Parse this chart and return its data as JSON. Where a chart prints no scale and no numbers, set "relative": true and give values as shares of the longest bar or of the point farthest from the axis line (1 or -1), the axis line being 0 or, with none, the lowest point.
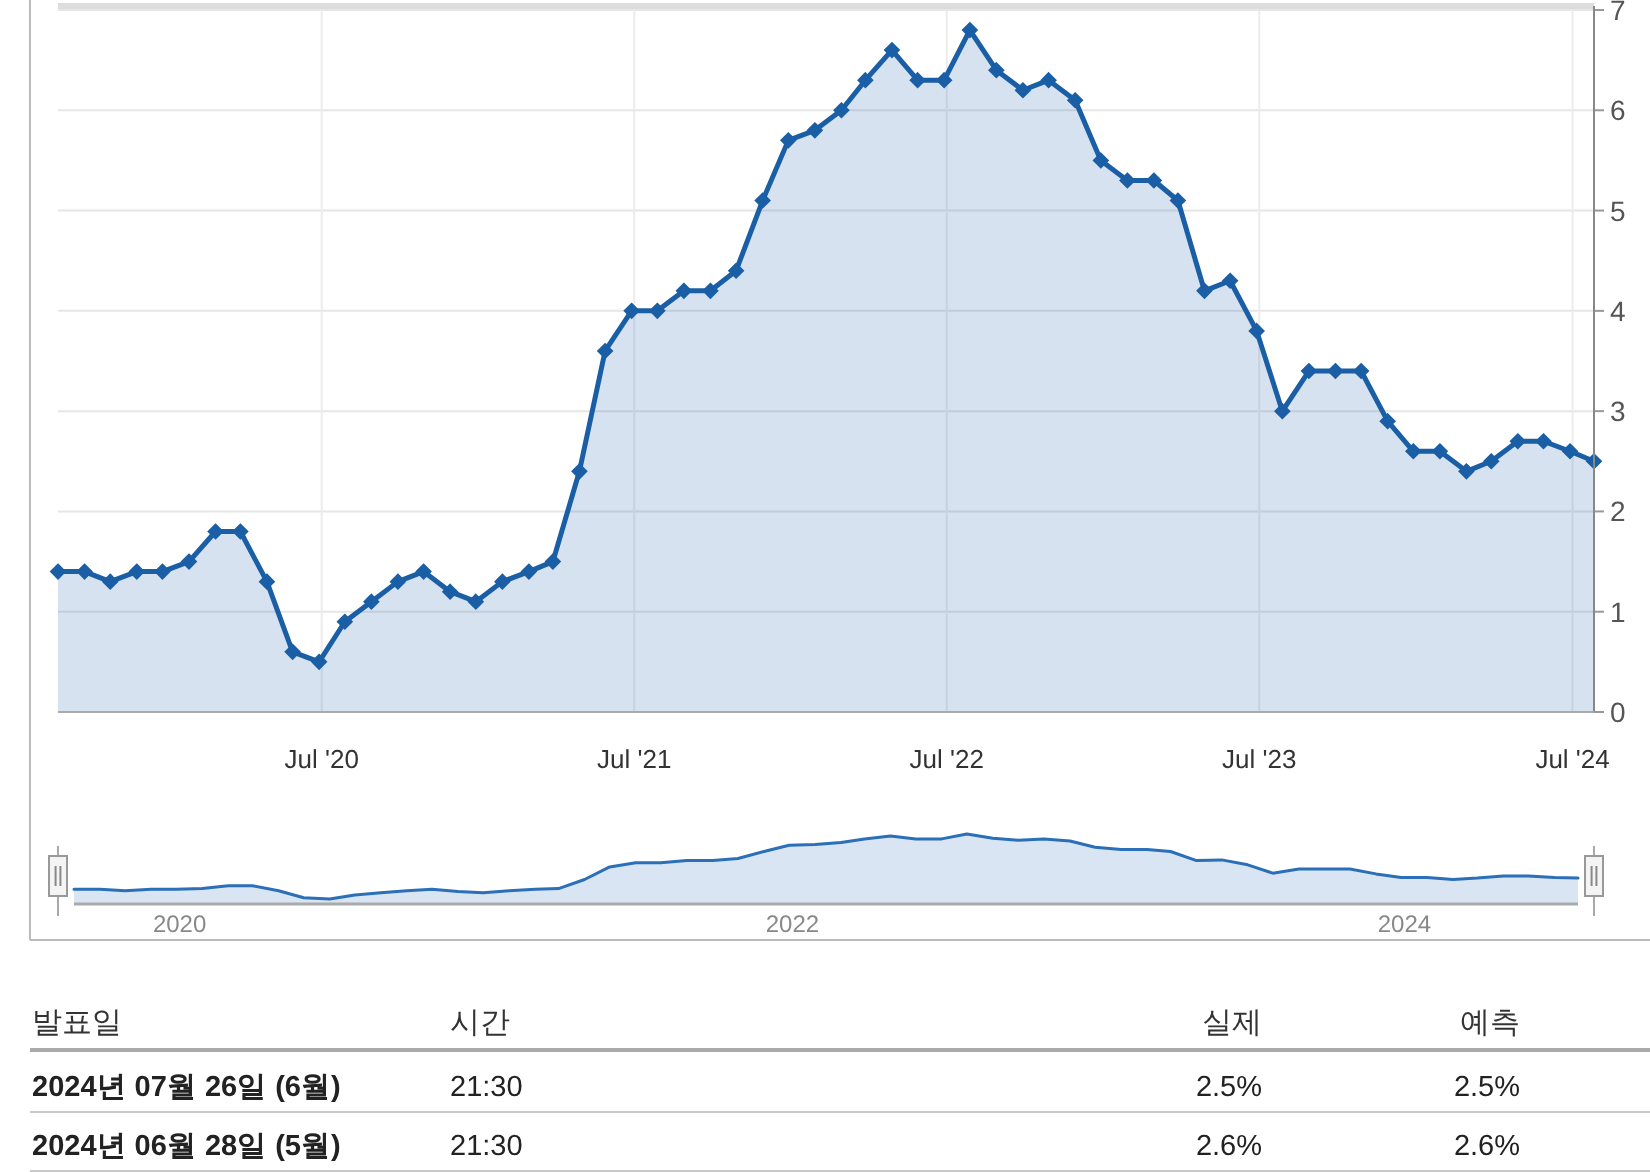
{
  "chart_data": [
    {
      "type": "area",
      "marker": "diamond",
      "grid": true,
      "x": [
        "2019-08-28",
        "2019-09-28",
        "2019-10-28",
        "2019-11-28",
        "2019-12-28",
        "2020-01-28",
        "2020-02-28",
        "2020-03-28",
        "2020-04-28",
        "2020-05-28",
        "2020-06-28",
        "2020-07-28",
        "2020-08-28",
        "2020-09-28",
        "2020-10-28",
        "2020-11-28",
        "2020-12-28",
        "2021-01-28",
        "2021-02-28",
        "2021-03-28",
        "2021-04-28",
        "2021-05-28",
        "2021-06-28",
        "2021-07-28",
        "2021-08-28",
        "2021-09-28",
        "2021-10-28",
        "2021-11-28",
        "2021-12-28",
        "2022-01-28",
        "2022-02-28",
        "2022-03-28",
        "2022-04-28",
        "2022-05-28",
        "2022-06-28",
        "2022-07-28",
        "2022-08-28",
        "2022-09-28",
        "2022-10-28",
        "2022-11-28",
        "2022-12-28",
        "2023-01-28",
        "2023-02-28",
        "2023-03-28",
        "2023-04-28",
        "2023-05-28",
        "2023-06-28",
        "2023-07-28",
        "2023-08-28",
        "2023-09-28",
        "2023-10-28",
        "2023-11-28",
        "2023-12-28",
        "2024-01-28",
        "2024-02-28",
        "2024-03-28",
        "2024-04-28",
        "2024-05-28",
        "2024-06-28",
        "2024-07-26"
      ],
      "series": [
        {
          "color": "#1a5fa6",
          "values": [
            1.4,
            1.4,
            1.3,
            1.4,
            1.4,
            1.5,
            1.8,
            1.8,
            1.3,
            0.6,
            0.5,
            0.9,
            1.1,
            1.3,
            1.4,
            1.2,
            1.1,
            1.3,
            1.4,
            1.5,
            2.4,
            3.6,
            4.0,
            4.0,
            4.2,
            4.2,
            4.4,
            5.1,
            5.7,
            5.8,
            6.0,
            6.3,
            6.6,
            6.3,
            6.3,
            6.8,
            6.4,
            6.2,
            6.3,
            6.1,
            5.5,
            5.3,
            5.3,
            5.1,
            4.2,
            4.3,
            3.8,
            3.0,
            3.4,
            3.4,
            3.4,
            2.9,
            2.6,
            2.6,
            2.4,
            2.5,
            2.7,
            2.7,
            2.6,
            2.5
          ]
        }
      ],
      "xlim": [
        "2019-08-28",
        "2024-07-26"
      ],
      "xticks": [
        {
          "value": "2020-07-01",
          "label": "Jul '20"
        },
        {
          "value": "2021-07-01",
          "label": "Jul '21"
        },
        {
          "value": "2022-07-01",
          "label": "Jul '22"
        },
        {
          "value": "2023-07-01",
          "label": "Jul '23"
        },
        {
          "value": "2024-07-01",
          "label": "Jul '24"
        }
      ],
      "ylim": [
        0,
        7
      ],
      "yticks": [
        0,
        1,
        2,
        3,
        4,
        5,
        6,
        7
      ]
    },
    {
      "type": "area",
      "relative": true,
      "x": [
        "2019-08-28",
        "2019-09-28",
        "2019-10-28",
        "2019-11-28",
        "2019-12-28",
        "2020-01-28",
        "2020-02-28",
        "2020-03-28",
        "2020-04-28",
        "2020-05-28",
        "2020-06-28",
        "2020-07-28",
        "2020-08-28",
        "2020-09-28",
        "2020-10-28",
        "2020-11-28",
        "2020-12-28",
        "2021-01-28",
        "2021-02-28",
        "2021-03-28",
        "2021-04-28",
        "2021-05-28",
        "2021-06-28",
        "2021-07-28",
        "2021-08-28",
        "2021-09-28",
        "2021-10-28",
        "2021-11-28",
        "2021-12-28",
        "2022-01-28",
        "2022-02-28",
        "2022-03-28",
        "2022-04-28",
        "2022-05-28",
        "2022-06-28",
        "2022-07-28",
        "2022-08-28",
        "2022-09-28",
        "2022-10-28",
        "2022-11-28",
        "2022-12-28",
        "2023-01-28",
        "2023-02-28",
        "2023-03-28",
        "2023-04-28",
        "2023-05-28",
        "2023-06-28",
        "2023-07-28",
        "2023-08-28",
        "2023-09-28",
        "2023-10-28",
        "2023-11-28",
        "2023-12-28",
        "2024-01-28",
        "2024-02-28",
        "2024-03-28",
        "2024-04-28",
        "2024-05-28",
        "2024-06-28",
        "2024-07-26"
      ],
      "series": [
        {
          "color": "#2a6fb8",
          "values": [
            0.21,
            0.21,
            0.19,
            0.21,
            0.21,
            0.22,
            0.26,
            0.26,
            0.19,
            0.09,
            0.07,
            0.13,
            0.16,
            0.19,
            0.21,
            0.18,
            0.16,
            0.19,
            0.21,
            0.22,
            0.35,
            0.53,
            0.59,
            0.59,
            0.62,
            0.62,
            0.65,
            0.75,
            0.84,
            0.85,
            0.88,
            0.93,
            0.97,
            0.93,
            0.93,
            1,
            0.94,
            0.91,
            0.93,
            0.9,
            0.81,
            0.78,
            0.78,
            0.75,
            0.62,
            0.63,
            0.56,
            0.44,
            0.5,
            0.5,
            0.5,
            0.43,
            0.38,
            0.38,
            0.35,
            0.37,
            0.4,
            0.4,
            0.38,
            0.37
          ]
        }
      ],
      "xlim": [
        "2019-08-28",
        "2024-07-26"
      ],
      "xticks": [
        {
          "value": "2020-01-01",
          "label": "2020"
        },
        {
          "value": "2022-01-01",
          "label": "2022"
        },
        {
          "value": "2024-01-01",
          "label": "2024"
        }
      ]
    },
    {
      "type": "other",
      "categories": [
        "발표일",
        "시간",
        "실제",
        "예측"
      ],
      "annotations": [
        "2024년 07월 26일 (6월)",
        "21:30",
        "2.5%",
        "2.5%",
        "2024년 06월 28일 (5월)",
        "21:30",
        "2.6%",
        "2.6%"
      ]
    }
  ]
}
